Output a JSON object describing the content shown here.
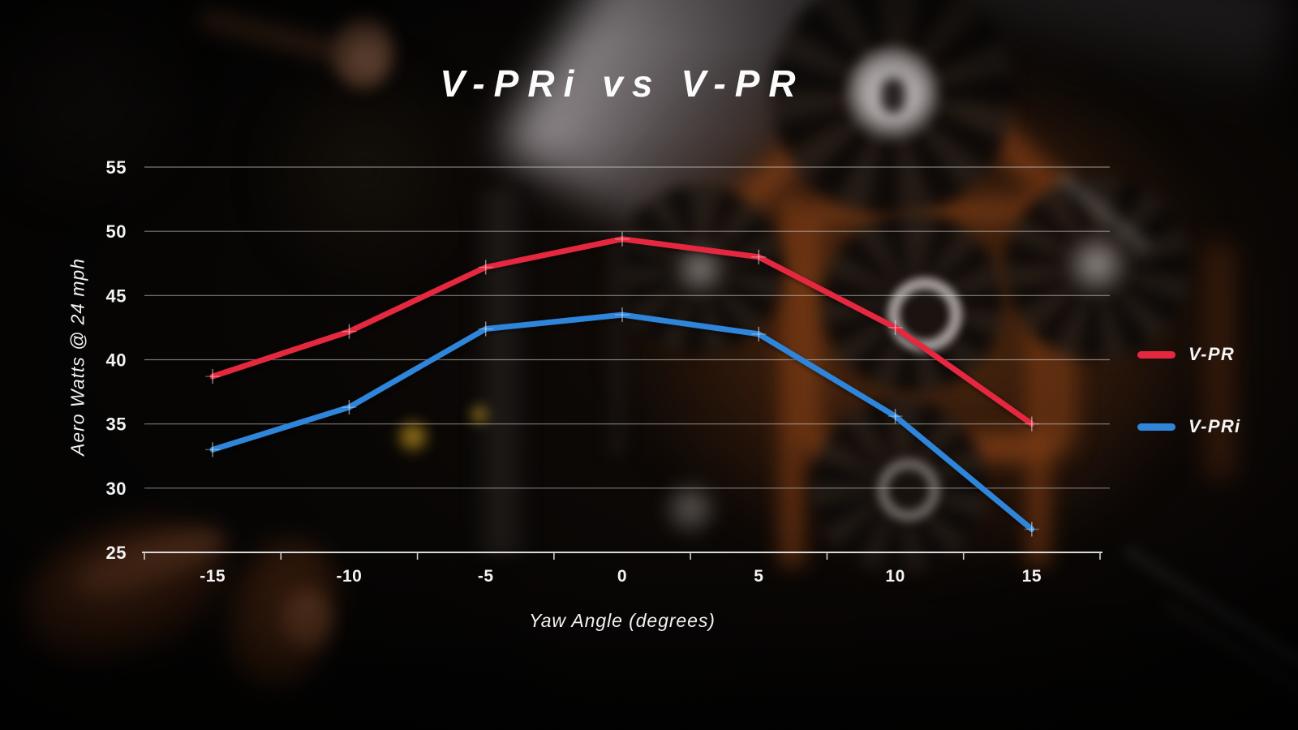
{
  "title": "V-PRi vs V-PR",
  "chart_data": {
    "type": "line",
    "title": "V-PRi vs V-PR",
    "xlabel": "Yaw Angle (degrees)",
    "ylabel": "Aero Watts @ 24 mph",
    "categories": [
      "-15",
      "-10",
      "-5",
      "0",
      "5",
      "10",
      "15"
    ],
    "x": [
      -15,
      -10,
      -5,
      0,
      5,
      10,
      15
    ],
    "series": [
      {
        "name": "V-PR",
        "color": "#e52840",
        "values": [
          38.7,
          42.2,
          47.2,
          49.4,
          48.0,
          42.5,
          35.0
        ]
      },
      {
        "name": "V-PRi",
        "color": "#2e85da",
        "values": [
          33.0,
          36.3,
          42.4,
          43.5,
          42.0,
          35.6,
          26.8
        ]
      }
    ],
    "ylim": [
      25,
      55
    ],
    "y_ticks": [
      25,
      30,
      35,
      40,
      45,
      50,
      55
    ],
    "grid": true,
    "legend_position": "right",
    "marker": "plus",
    "grid_color": "rgba(235,235,235,0.5)",
    "text_color": "#f3f3f3"
  }
}
